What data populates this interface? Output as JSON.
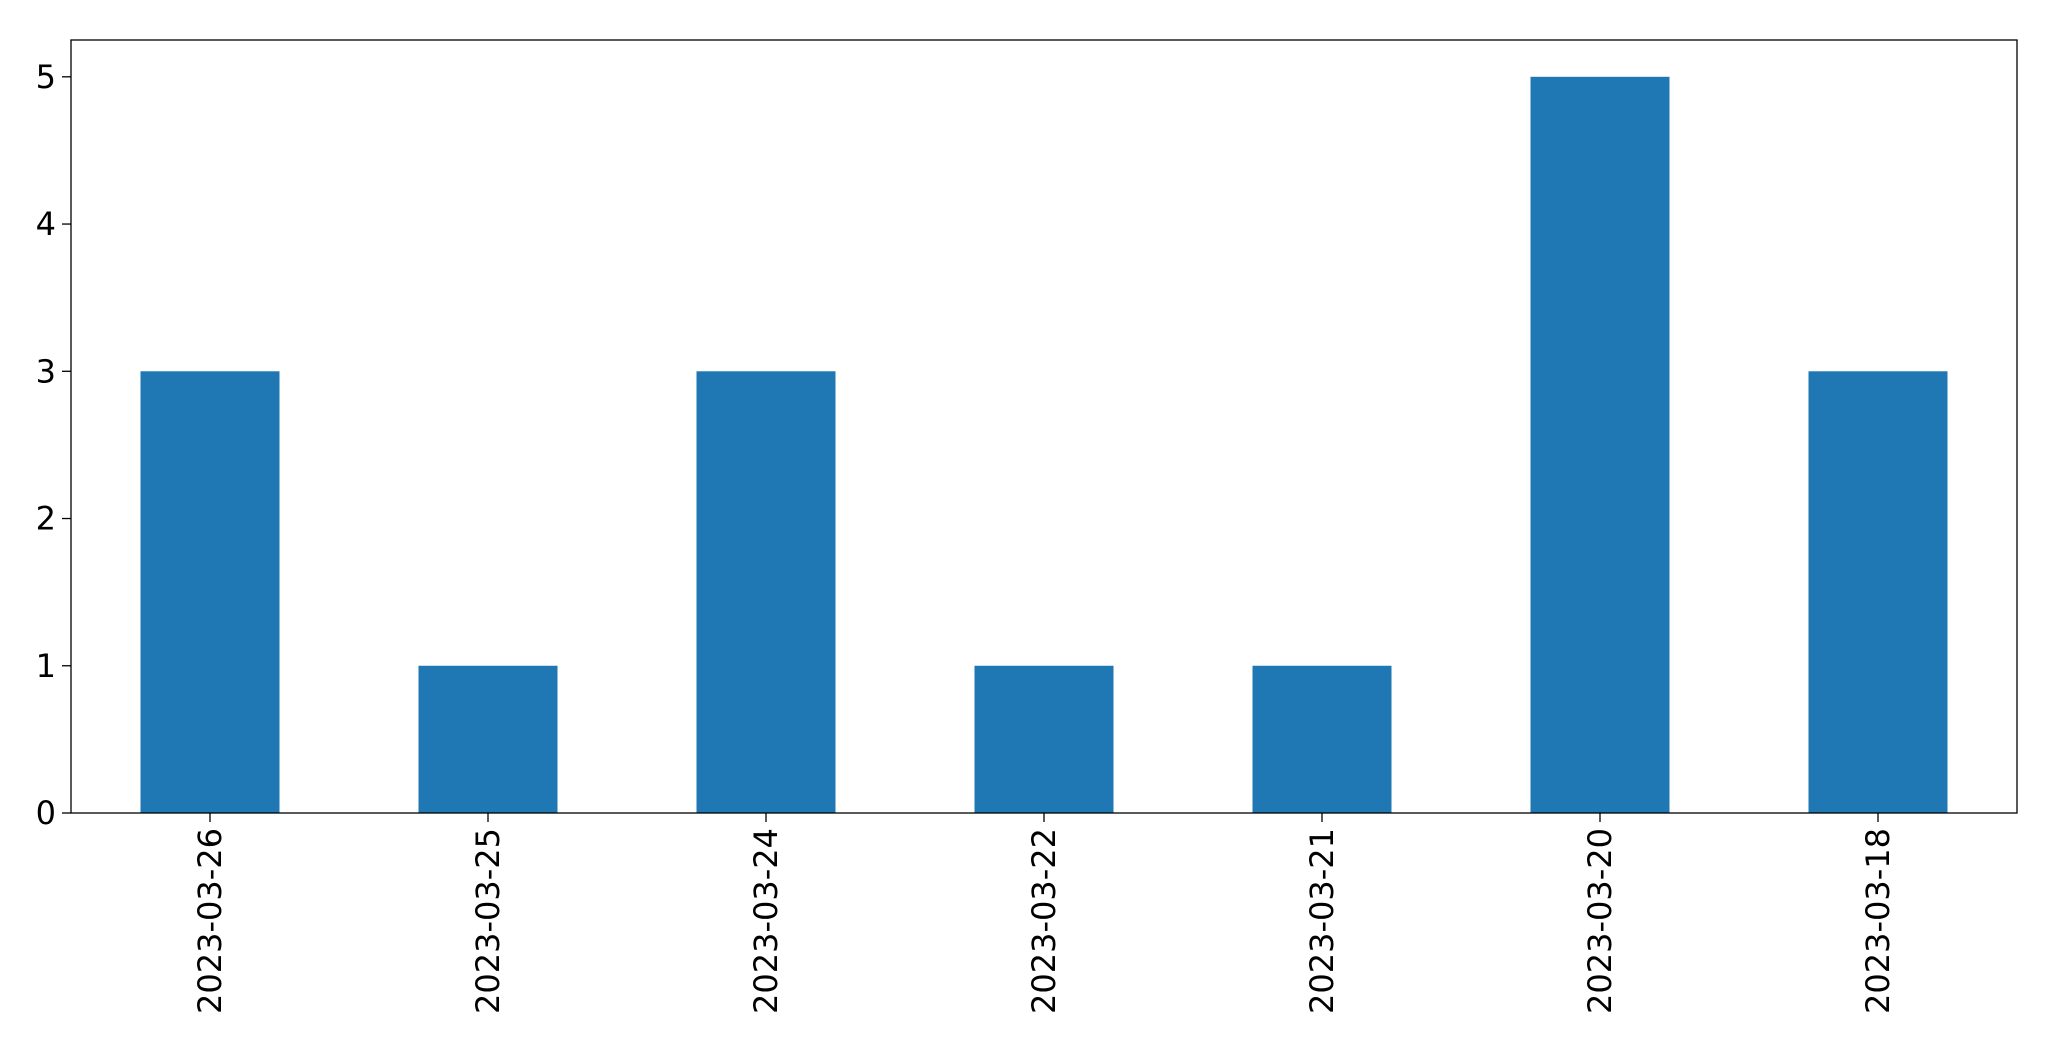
{
  "chart_data": {
    "type": "bar",
    "categories": [
      "2023-03-26",
      "2023-03-25",
      "2023-03-24",
      "2023-03-22",
      "2023-03-21",
      "2023-03-20",
      "2023-03-18"
    ],
    "values": [
      3,
      1,
      3,
      1,
      1,
      5,
      3
    ],
    "title": "",
    "xlabel": "",
    "ylabel": "",
    "ylim": [
      0,
      5.25
    ],
    "yticks": [
      0,
      1,
      2,
      3,
      4,
      5
    ],
    "grid": false,
    "legend": "none",
    "bar_color": "#1f77b4"
  }
}
